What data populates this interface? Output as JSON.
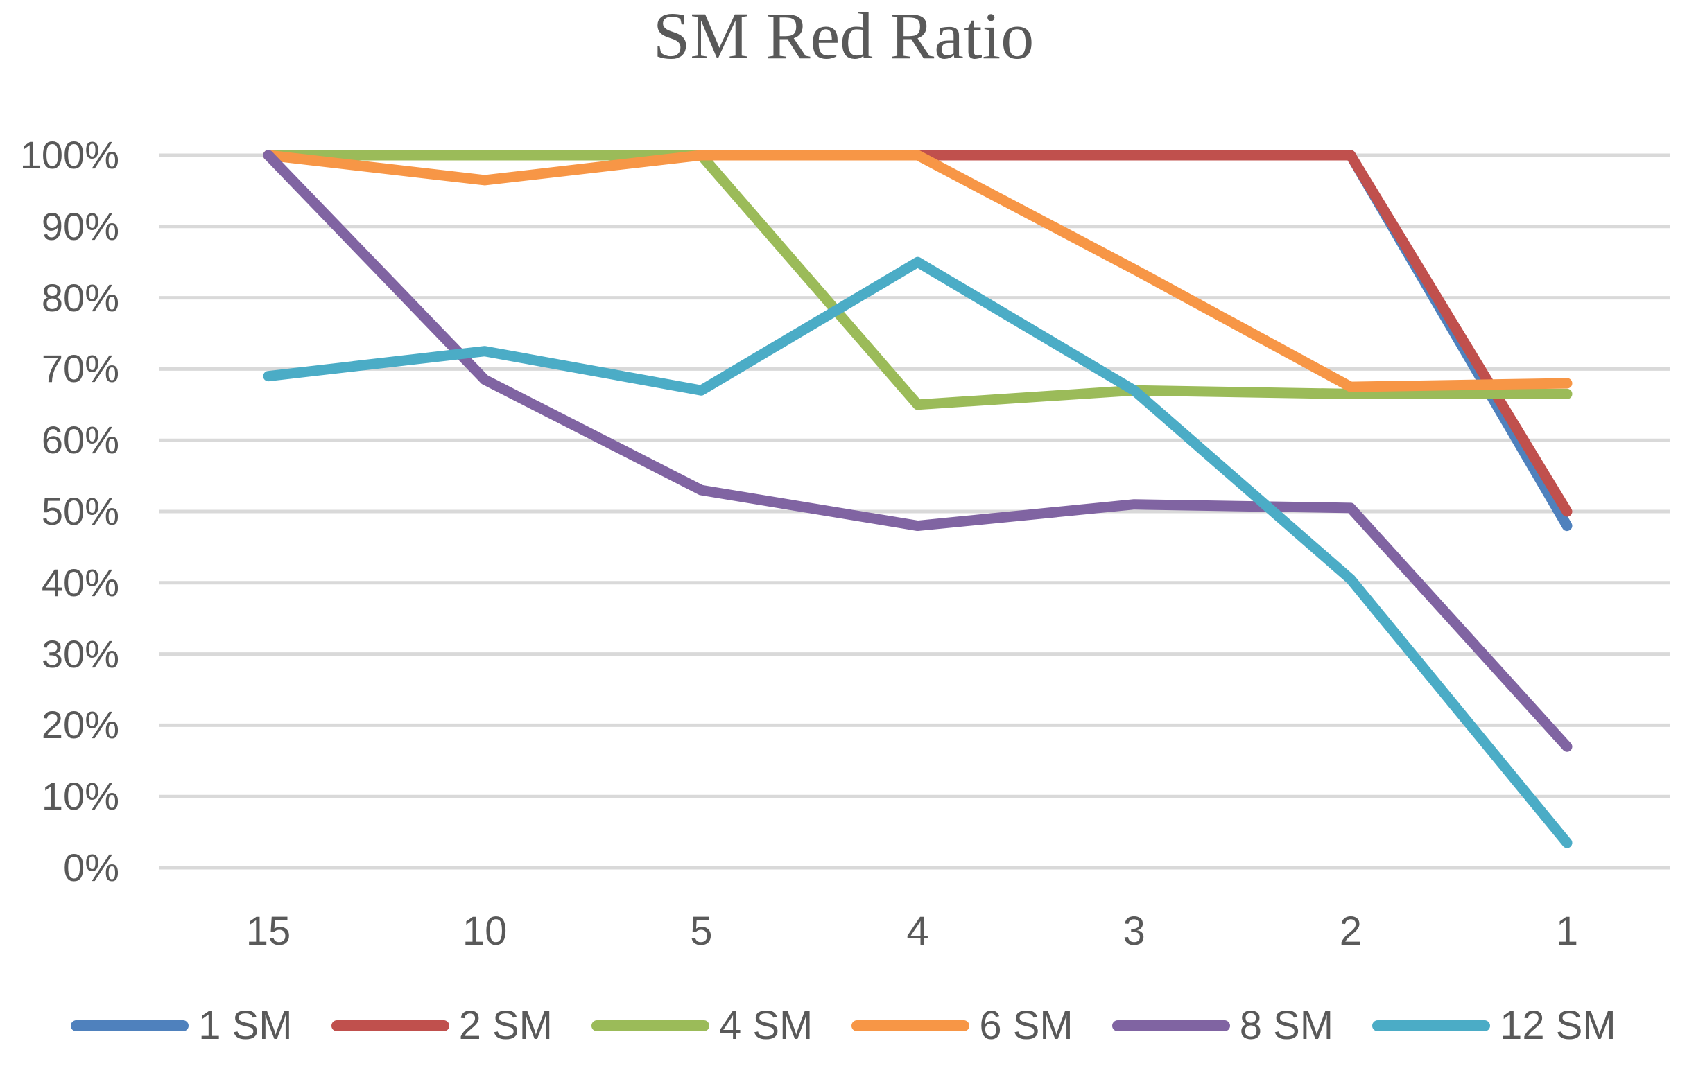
{
  "chart_data": {
    "type": "line",
    "title": "SM Red Ratio",
    "xlabel": "",
    "ylabel": "",
    "categories": [
      "15",
      "10",
      "5",
      "4",
      "3",
      "2",
      "1"
    ],
    "series": [
      {
        "name": "1 SM",
        "color": "#4F81BD",
        "values": [
          100,
          100,
          100,
          100,
          100,
          100,
          48
        ]
      },
      {
        "name": "2 SM",
        "color": "#C0504D",
        "values": [
          100,
          100,
          100,
          100,
          100,
          100,
          50
        ]
      },
      {
        "name": "4 SM",
        "color": "#9BBB59",
        "values": [
          100,
          100,
          100,
          65,
          67,
          66.5,
          66.5
        ]
      },
      {
        "name": "6 SM",
        "color": "#F79646",
        "values": [
          100,
          96.5,
          100,
          100,
          84,
          67.5,
          68
        ]
      },
      {
        "name": "8 SM",
        "color": "#8064A2",
        "values": [
          100,
          68.5,
          53,
          48,
          51,
          50.5,
          17
        ]
      },
      {
        "name": "12 SM",
        "color": "#4BACC6",
        "values": [
          69,
          72.5,
          67,
          85,
          67,
          40.5,
          3.5
        ]
      }
    ],
    "ylim": [
      0,
      100
    ],
    "ytick_values": [
      0,
      10,
      20,
      30,
      40,
      50,
      60,
      70,
      80,
      90,
      100
    ],
    "ytick_labels": [
      "0%",
      "10%",
      "20%",
      "30%",
      "40%",
      "50%",
      "60%",
      "70%",
      "80%",
      "90%",
      "100%"
    ],
    "grid": true,
    "legend_position": "bottom",
    "styles": {
      "grid_color": "#D9D9D9",
      "text_color": "#595959",
      "title_color": "#595959",
      "background": "#FFFFFF"
    }
  }
}
